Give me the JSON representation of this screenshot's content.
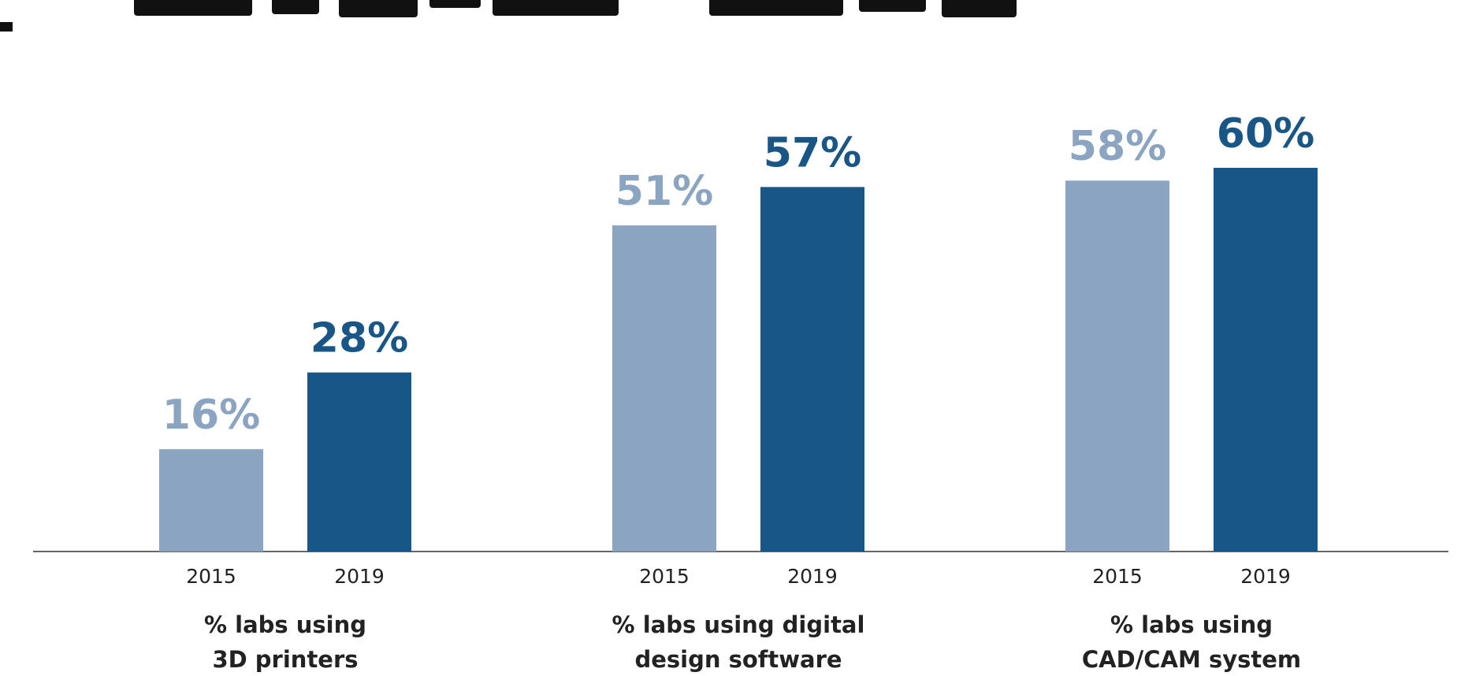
{
  "chart_data": {
    "type": "bar",
    "title": "",
    "xlabel": "",
    "ylabel": "",
    "ylim": [
      0,
      70
    ],
    "grid": false,
    "legend": "none",
    "groups": [
      {
        "label_lines": [
          "% labs using",
          "3D printers"
        ],
        "bars": [
          {
            "year": "2015",
            "value": 16,
            "label": "16%"
          },
          {
            "year": "2019",
            "value": 28,
            "label": "28%"
          }
        ]
      },
      {
        "label_lines": [
          "% labs using digital",
          "design software"
        ],
        "bars": [
          {
            "year": "2015",
            "value": 51,
            "label": "51%"
          },
          {
            "year": "2019",
            "value": 57,
            "label": "57%"
          }
        ]
      },
      {
        "label_lines": [
          "% labs using",
          "CAD/CAM system"
        ],
        "bars": [
          {
            "year": "2015",
            "value": 58,
            "label": "58%"
          },
          {
            "year": "2019",
            "value": 60,
            "label": "60%"
          }
        ]
      }
    ],
    "colors": {
      "2015": "#8BA4C2",
      "2019": "#195688",
      "axis": "#333333",
      "text": "#222222"
    }
  }
}
